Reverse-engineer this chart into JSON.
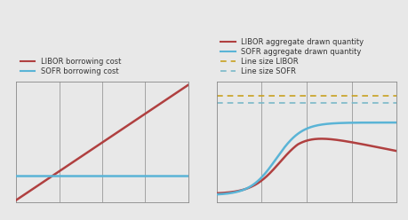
{
  "background_color": "#e8e8e8",
  "axes_bg": "#e8e8e8",
  "grid_color": "#888888",
  "text_color": "#333333",
  "libor_color": "#b04040",
  "sofr_color": "#5ab4d6",
  "line_size_libor_color": "#c8a020",
  "line_size_sofr_color": "#7ab8c8",
  "legend_fontsize": 6.0,
  "left_legend": [
    "LIBOR borrowing cost",
    "SOFR borrowing cost"
  ],
  "right_legend": [
    "LIBOR aggregate drawn quantity",
    "SOFR aggregate drawn quantity",
    "Line size LIBOR",
    "Line size SOFR"
  ]
}
